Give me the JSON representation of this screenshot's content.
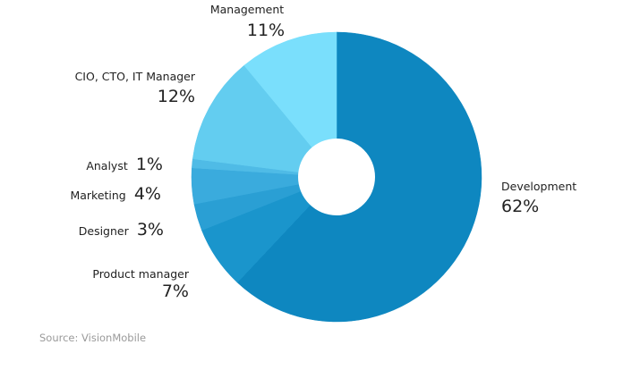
{
  "chart_data": {
    "type": "pie",
    "donut": true,
    "slices": [
      {
        "label": "Development",
        "value": 62,
        "display": "62%",
        "color": "#0e87c0"
      },
      {
        "label": "Product manager",
        "value": 7,
        "display": "7%",
        "color": "#1a95cc"
      },
      {
        "label": "Designer",
        "value": 3,
        "display": "3%",
        "color": "#2a9fd4"
      },
      {
        "label": "Marketing",
        "value": 4,
        "display": "4%",
        "color": "#3aabdd"
      },
      {
        "label": "Analyst",
        "value": 1,
        "display": "1%",
        "color": "#4fbbe6"
      },
      {
        "label": "CIO, CTO, IT Manager",
        "value": 12,
        "display": "12%",
        "color": "#63cdf0"
      },
      {
        "label": "Management",
        "value": 11,
        "display": "11%",
        "color": "#7adffc"
      }
    ]
  },
  "source": "Source: VisionMobile"
}
